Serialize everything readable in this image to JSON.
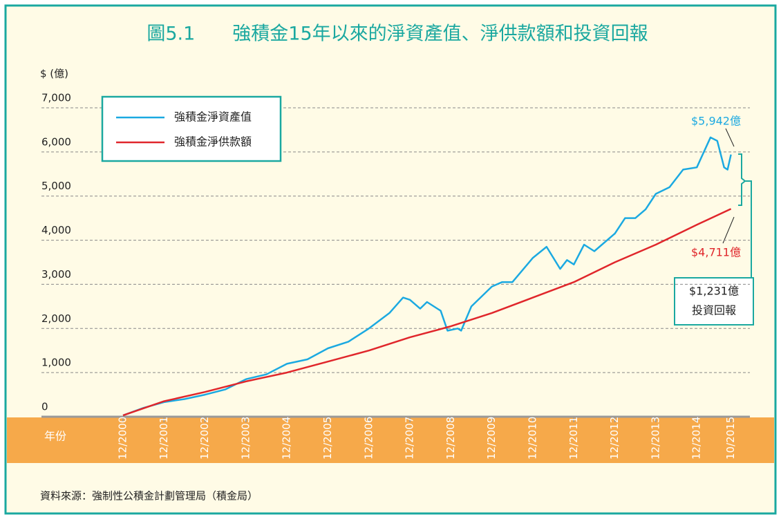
{
  "chart_data": {
    "type": "line",
    "title": "圖5.1　　強積金15年以來的淨資產值、淨供款額和投資回報",
    "y_label": "$ (億)",
    "x_label": "年份",
    "source": "資料來源：強制性公積金計劃管理局（積金局）",
    "ylim": [
      0,
      7000
    ],
    "yticks": [
      0,
      {
        "value": 1000,
        "label": "1,000"
      },
      {
        "value": 2000,
        "label": "2,000"
      },
      {
        "value": 3000,
        "label": "3,000"
      },
      {
        "value": 4000,
        "label": "4,000"
      },
      {
        "value": 5000,
        "label": "5,000"
      },
      {
        "value": 6000,
        "label": "6,000"
      },
      {
        "value": 7000,
        "label": "7,000"
      }
    ],
    "xticks": [
      "12/2000",
      "12/2001",
      "12/2002",
      "12/2003",
      "12/2004",
      "12/2005",
      "12/2006",
      "12/2007",
      "12/2008",
      "12/2009",
      "12/2010",
      "12/2011",
      "12/2012",
      "12/2013",
      "12/2014",
      "10/2015"
    ],
    "grid": true,
    "series": [
      {
        "name": "強積金淨資產值",
        "color": "#1ba9e1",
        "x": [
          "12/2000",
          "6/2001",
          "12/2001",
          "6/2002",
          "12/2002",
          "6/2003",
          "12/2003",
          "6/2004",
          "12/2004",
          "6/2005",
          "12/2005",
          "6/2006",
          "12/2006",
          "6/2007",
          "10/2007",
          "12/2007",
          "3/2008",
          "5/2008",
          "9/2008",
          "11/2008",
          "2/2009",
          "3/2009",
          "6/2009",
          "12/2009",
          "3/2010",
          "6/2010",
          "12/2010",
          "4/2011",
          "8/2011",
          "10/2011",
          "12/2011",
          "3/2012",
          "6/2012",
          "12/2012",
          "3/2013",
          "6/2013",
          "9/2013",
          "12/2013",
          "4/2014",
          "8/2014",
          "12/2014",
          "4/2015",
          "6/2015",
          "8/2015",
          "9/2015",
          "10/2015"
        ],
        "values": [
          30,
          200,
          330,
          400,
          500,
          620,
          850,
          960,
          1200,
          1300,
          1550,
          1700,
          2000,
          2350,
          2700,
          2650,
          2450,
          2600,
          2400,
          1950,
          2000,
          1950,
          2500,
          2950,
          3050,
          3050,
          3600,
          3850,
          3350,
          3550,
          3450,
          3900,
          3750,
          4150,
          4500,
          4500,
          4700,
          5050,
          5200,
          5600,
          5650,
          6330,
          6250,
          5650,
          5600,
          5942
        ]
      },
      {
        "name": "強積金淨供款額",
        "color": "#e0262b",
        "x": [
          "12/2000",
          "12/2001",
          "12/2002",
          "12/2003",
          "12/2004",
          "12/2005",
          "12/2006",
          "12/2007",
          "12/2008",
          "12/2009",
          "12/2010",
          "12/2011",
          "12/2012",
          "12/2013",
          "12/2014",
          "10/2015"
        ],
        "values": [
          30,
          350,
          560,
          800,
          1000,
          1250,
          1500,
          1800,
          2050,
          2350,
          2700,
          3050,
          3500,
          3900,
          4350,
          4711
        ]
      }
    ],
    "annotations": [
      "$5,942億",
      "$4,711億",
      "$1,231億",
      "投資回報"
    ]
  }
}
